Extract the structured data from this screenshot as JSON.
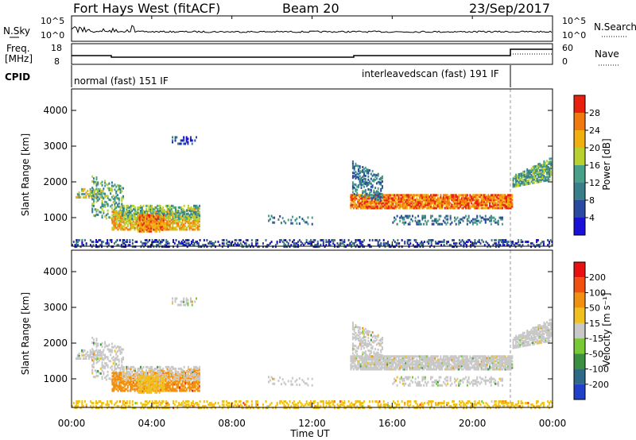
{
  "header": {
    "title": "Fort Hays West (fitACF)",
    "beam": "Beam 20",
    "date": "23/Sep/2017"
  },
  "top_panels": {
    "nsky_label": "N.Sky",
    "nsearch_label": "N.Search",
    "freq_label_1": "Freq.",
    "freq_label_2": "[MHz]",
    "nave_label": "Nave",
    "cpid_label": "CPID",
    "left_ticks_sky": [
      "10^5",
      "10^0"
    ],
    "right_ticks_search": [
      "10^5",
      "10^0"
    ],
    "left_ticks_freq": [
      "18",
      "8"
    ],
    "right_ticks_nave": [
      "60",
      "0"
    ],
    "cpid_1": "normal (fast) 151 IF",
    "cpid_2": "interleavedscan (fast) 191 IF"
  },
  "chart_data": [
    {
      "type": "heatmap",
      "panel": "power",
      "xlabel": "",
      "ylabel": "Slant Range [km]",
      "ylim": [
        200,
        4600
      ],
      "yticks": [
        1000,
        2000,
        3000,
        4000
      ],
      "colorbar_label": "Power [dB]",
      "colorbar_ticks": [
        4,
        8,
        12,
        16,
        20,
        24,
        28
      ],
      "colors": [
        "#1a10d8",
        "#2a4aa0",
        "#3a7e8a",
        "#48a088",
        "#b8d030",
        "#f0b010",
        "#f07a10",
        "#e82010"
      ]
    },
    {
      "type": "heatmap",
      "panel": "velocity",
      "xlabel": "Time UT",
      "ylabel": "Slant Range [km]",
      "ylim": [
        200,
        4600
      ],
      "yticks": [
        1000,
        2000,
        3000,
        4000
      ],
      "xticks": [
        "00:00",
        "04:00",
        "08:00",
        "12:00",
        "16:00",
        "20:00",
        "00:00"
      ],
      "colorbar_label": "Velocity [m s⁻¹]",
      "colorbar_ticks": [
        200,
        100,
        50,
        15,
        -15,
        -50,
        -100,
        -200
      ],
      "colors": [
        "#2040c8",
        "#2e6a88",
        "#3a9040",
        "#78c838",
        "#c8c8c8",
        "#f0c020",
        "#f09010",
        "#f05010",
        "#e81010"
      ]
    }
  ]
}
